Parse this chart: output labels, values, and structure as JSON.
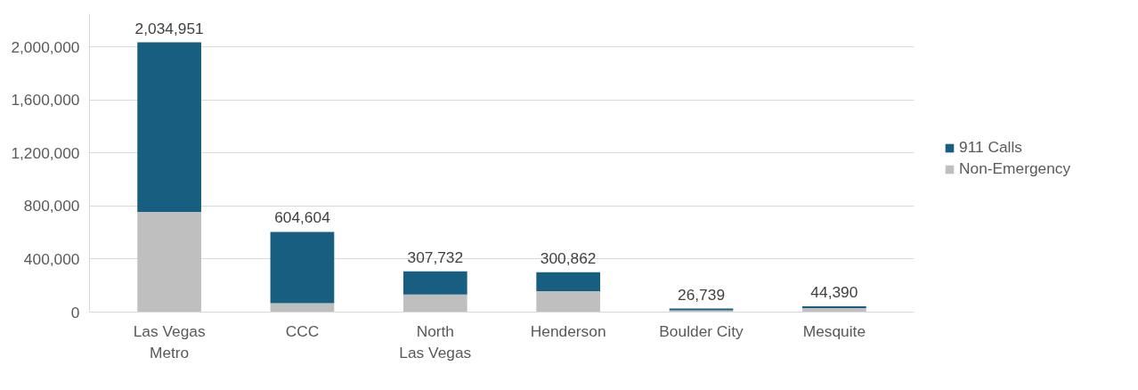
{
  "chart_data": {
    "type": "bar",
    "stacked": true,
    "categories": [
      "Las Vegas\nMetro",
      "CCC",
      "North\nLas Vegas",
      "Henderson",
      "Boulder City",
      "Mesquite"
    ],
    "series": [
      {
        "name": "Non-Emergency",
        "color": "#bfbfbf",
        "values": [
          756000,
          67000,
          133000,
          158000,
          14000,
          30000
        ]
      },
      {
        "name": "911 Calls",
        "color": "#175e80",
        "values": [
          1278951,
          537604,
          174732,
          142862,
          12739,
          14390
        ]
      }
    ],
    "totals": [
      "2,034,951",
      "604,604",
      "307,732",
      "300,862",
      "26,739",
      "44,390"
    ],
    "ylim": [
      0,
      2250000
    ],
    "yticks": [
      {
        "value": 0,
        "label": "0"
      },
      {
        "value": 400000,
        "label": "400,000"
      },
      {
        "value": 800000,
        "label": "800,000"
      },
      {
        "value": 1200000,
        "label": "1,200,000"
      },
      {
        "value": 1600000,
        "label": "1,600,000"
      },
      {
        "value": 2000000,
        "label": "2,000,000"
      }
    ],
    "grid": "y",
    "legend": "right"
  }
}
